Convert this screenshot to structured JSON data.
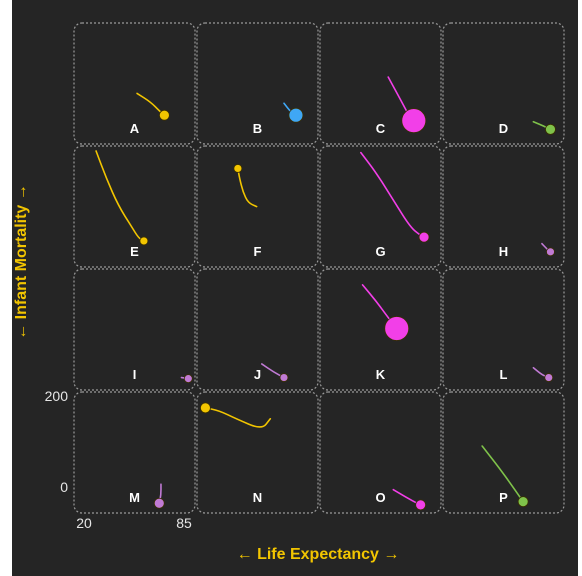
{
  "colors": {
    "background": "#252525",
    "cell_border": "#9a9a9a",
    "axis_label": "#f2c500",
    "tick_label": "#e6e6e6",
    "panel_label": "#ffffff"
  },
  "chart_data": {
    "type": "scatter",
    "subtype": "small-multiples-trajectory",
    "xlabel": "← Life Expectancy →",
    "ylabel": "← Infant Mortality →",
    "x_ticks": [
      "20",
      "85"
    ],
    "y_ticks": [
      "200",
      "0"
    ],
    "xlim": [
      20,
      85
    ],
    "ylim": [
      0,
      200
    ],
    "grid": {
      "rows": 4,
      "cols": 4
    },
    "panels": [
      {
        "label": "A",
        "color": "#f2c500",
        "size": 5,
        "path": [
          [
            54,
            80
          ],
          [
            62,
            64
          ],
          [
            67,
            48
          ],
          [
            70,
            40
          ]
        ]
      },
      {
        "label": "B",
        "color": "#3fa7f5",
        "size": 7,
        "path": [
          [
            68,
            62
          ],
          [
            72,
            46
          ],
          [
            75,
            40
          ]
        ]
      },
      {
        "label": "C",
        "color": "#f23fe8",
        "size": 12,
        "path": [
          [
            57,
            110
          ],
          [
            64,
            70
          ],
          [
            69,
            40
          ],
          [
            72,
            30
          ]
        ]
      },
      {
        "label": "D",
        "color": "#7fc24a",
        "size": 5,
        "path": [
          [
            70,
            28
          ],
          [
            76,
            20
          ],
          [
            80,
            14
          ]
        ]
      },
      {
        "label": "E",
        "color": "#f2c500",
        "size": 4,
        "path": [
          [
            30,
            200
          ],
          [
            36,
            150
          ],
          [
            43,
            100
          ],
          [
            51,
            60
          ],
          [
            55,
            40
          ],
          [
            58,
            35
          ]
        ]
      },
      {
        "label": "F",
        "color": "#f2c500",
        "size": 4,
        "path": [
          [
            52,
            98
          ],
          [
            47,
            105
          ],
          [
            44,
            125
          ],
          [
            42,
            150
          ],
          [
            41,
            168
          ]
        ]
      },
      {
        "label": "G",
        "color": "#f23fe8",
        "size": 5,
        "path": [
          [
            41,
            197
          ],
          [
            50,
            160
          ],
          [
            60,
            110
          ],
          [
            70,
            60
          ],
          [
            76,
            45
          ],
          [
            78,
            42
          ]
        ]
      },
      {
        "label": "H",
        "color": "#c07ad4",
        "size": 4,
        "path": [
          [
            75,
            30
          ],
          [
            78,
            20
          ],
          [
            80,
            15
          ]
        ]
      },
      {
        "label": "I",
        "color": "#c07ad4",
        "size": 4,
        "path": [
          [
            80,
            10
          ],
          [
            84,
            8
          ]
        ]
      },
      {
        "label": "J",
        "color": "#c07ad4",
        "size": 4,
        "path": [
          [
            55,
            35
          ],
          [
            62,
            20
          ],
          [
            68,
            10
          ]
        ]
      },
      {
        "label": "K",
        "color": "#f23fe8",
        "size": 12,
        "path": [
          [
            42,
            180
          ],
          [
            50,
            150
          ],
          [
            57,
            120
          ],
          [
            62,
            100
          ]
        ]
      },
      {
        "label": "L",
        "color": "#c07ad4",
        "size": 4,
        "path": [
          [
            70,
            28
          ],
          [
            75,
            15
          ],
          [
            79,
            10
          ]
        ]
      },
      {
        "label": "M",
        "color": "#c07ad4",
        "size": 5,
        "path": [
          [
            68,
            40
          ],
          [
            68,
            20
          ],
          [
            67,
            5
          ]
        ]
      },
      {
        "label": "N",
        "color": "#f2c500",
        "size": 5,
        "path": [
          [
            60,
            160
          ],
          [
            55,
            140
          ],
          [
            40,
            160
          ],
          [
            30,
            175
          ],
          [
            22,
            180
          ]
        ]
      },
      {
        "label": "O",
        "color": "#f23fe8",
        "size": 5,
        "path": [
          [
            60,
            30
          ],
          [
            68,
            15
          ],
          [
            74,
            5
          ],
          [
            76,
            2
          ]
        ]
      },
      {
        "label": "P",
        "color": "#7fc24a",
        "size": 5,
        "path": [
          [
            40,
            110
          ],
          [
            50,
            70
          ],
          [
            58,
            35
          ],
          [
            64,
            8
          ]
        ]
      }
    ]
  }
}
